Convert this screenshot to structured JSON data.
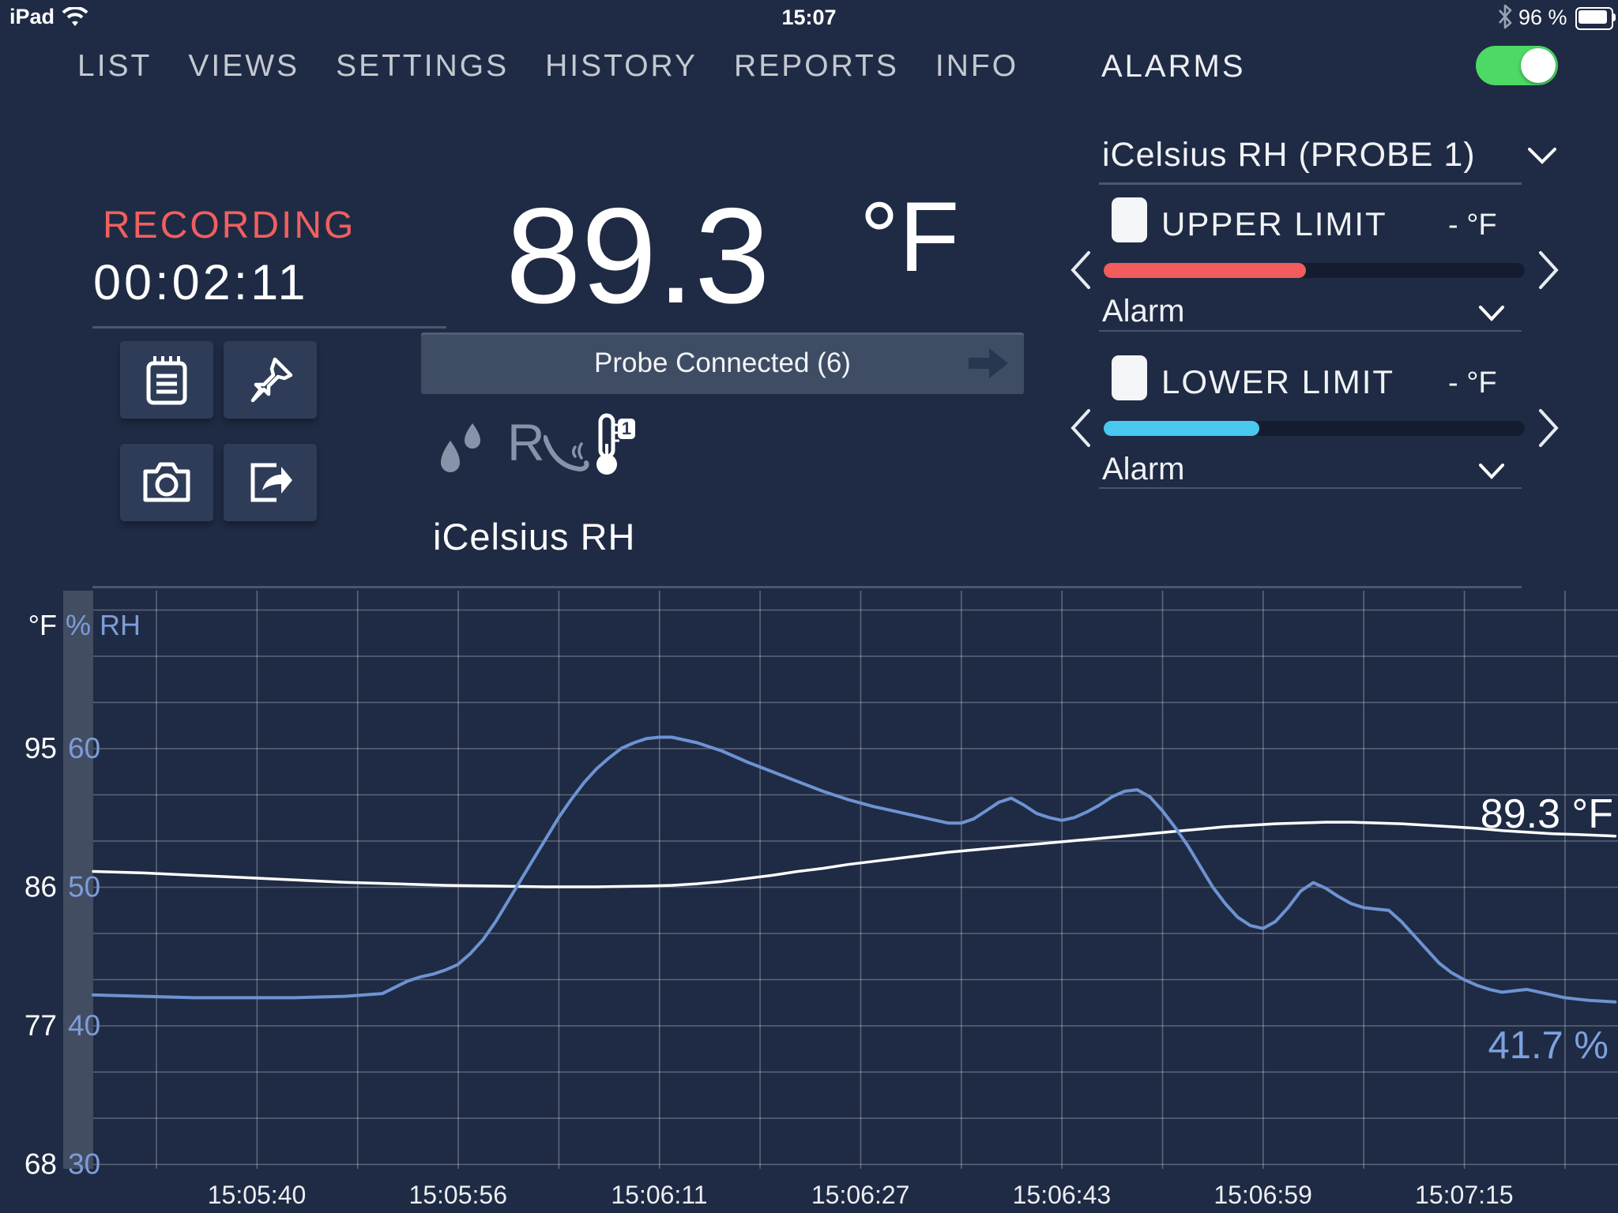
{
  "status_bar": {
    "device": "iPad",
    "time": "15:07",
    "battery_percent": "96 %"
  },
  "nav": {
    "items": [
      "LIST",
      "VIEWS",
      "SETTINGS",
      "HISTORY",
      "REPORTS",
      "INFO"
    ],
    "alarms_label": "ALARMS",
    "alarms_enabled": true,
    "toggle_color": "#4cd964"
  },
  "recording": {
    "status": "RECORDING",
    "elapsed": "00:02:11"
  },
  "reading": {
    "value": "89.3",
    "unit": "°F",
    "probe_status": "Probe Connected (6)",
    "device_name": "iCelsius RH"
  },
  "alarms_panel": {
    "probe_selector": "iCelsius RH (PROBE 1)",
    "upper": {
      "label": "UPPER LIMIT",
      "value": "- °F",
      "alarm_label": "Alarm",
      "fill_percent": 48,
      "color": "#f25c5c"
    },
    "lower": {
      "label": "LOWER LIMIT",
      "value": "- °F",
      "alarm_label": "Alarm",
      "fill_percent": 37,
      "color": "#49c8f0"
    }
  },
  "chart_data": {
    "type": "line",
    "grid": true,
    "axes": {
      "temperature": {
        "label": "°F",
        "ticks": [
          95,
          86,
          77,
          68
        ],
        "color": "#ffffff"
      },
      "humidity": {
        "label_symbol": "%",
        "label_text": "RH",
        "ticks": [
          60,
          50,
          40,
          30
        ],
        "color": "#7d9cd8"
      },
      "time": {
        "ticks": [
          {
            "t": 13,
            "label": "15:05:40"
          },
          {
            "t": 29,
            "label": "15:05:56"
          },
          {
            "t": 45,
            "label": "15:06:11"
          },
          {
            "t": 61,
            "label": "15:06:27"
          },
          {
            "t": 77,
            "label": "15:06:43"
          },
          {
            "t": 93,
            "label": "15:06:59"
          },
          {
            "t": 109,
            "label": "15:07:15"
          }
        ]
      }
    },
    "series": [
      {
        "name": "temperature",
        "axis": "temperature",
        "color": "#ffffff",
        "width": 3.5,
        "current_label": "89.3 °F",
        "points": [
          [
            0,
            87.0
          ],
          [
            4,
            86.9
          ],
          [
            8,
            86.75
          ],
          [
            12,
            86.6
          ],
          [
            16,
            86.45
          ],
          [
            20,
            86.3
          ],
          [
            24,
            86.2
          ],
          [
            28,
            86.1
          ],
          [
            32,
            86.05
          ],
          [
            36,
            86.0
          ],
          [
            40,
            86.0
          ],
          [
            44,
            86.05
          ],
          [
            46,
            86.1
          ],
          [
            48,
            86.2
          ],
          [
            50,
            86.35
          ],
          [
            52,
            86.55
          ],
          [
            54,
            86.75
          ],
          [
            56,
            87.0
          ],
          [
            58,
            87.2
          ],
          [
            60,
            87.45
          ],
          [
            62,
            87.65
          ],
          [
            64,
            87.85
          ],
          [
            66,
            88.05
          ],
          [
            68,
            88.25
          ],
          [
            70,
            88.4
          ],
          [
            72,
            88.55
          ],
          [
            74,
            88.7
          ],
          [
            76,
            88.85
          ],
          [
            78,
            89.0
          ],
          [
            80,
            89.15
          ],
          [
            82,
            89.3
          ],
          [
            84,
            89.45
          ],
          [
            86,
            89.6
          ],
          [
            88,
            89.75
          ],
          [
            90,
            89.9
          ],
          [
            92,
            90.0
          ],
          [
            94,
            90.1
          ],
          [
            96,
            90.15
          ],
          [
            98,
            90.2
          ],
          [
            100,
            90.2
          ],
          [
            102,
            90.15
          ],
          [
            104,
            90.1
          ],
          [
            106,
            90.0
          ],
          [
            108,
            89.9
          ],
          [
            110,
            89.8
          ],
          [
            112,
            89.65
          ],
          [
            114,
            89.55
          ],
          [
            116,
            89.45
          ],
          [
            118,
            89.4
          ],
          [
            121,
            89.3
          ]
        ]
      },
      {
        "name": "humidity",
        "axis": "humidity",
        "color": "#6d93d2",
        "width": 4,
        "current_label": "41.7 %",
        "points": [
          [
            0,
            42.2
          ],
          [
            4,
            42.1
          ],
          [
            8,
            42.0
          ],
          [
            12,
            42.0
          ],
          [
            16,
            42.0
          ],
          [
            20,
            42.1
          ],
          [
            23,
            42.3
          ],
          [
            25,
            43.2
          ],
          [
            26,
            43.5
          ],
          [
            27,
            43.7
          ],
          [
            28,
            44.0
          ],
          [
            29,
            44.4
          ],
          [
            30,
            45.2
          ],
          [
            31,
            46.2
          ],
          [
            32,
            47.5
          ],
          [
            33,
            49.0
          ],
          [
            34,
            50.5
          ],
          [
            35,
            52.0
          ],
          [
            36,
            53.5
          ],
          [
            37,
            55.0
          ],
          [
            38,
            56.3
          ],
          [
            39,
            57.5
          ],
          [
            40,
            58.5
          ],
          [
            41,
            59.3
          ],
          [
            42,
            60.0
          ],
          [
            43,
            60.4
          ],
          [
            44,
            60.7
          ],
          [
            45,
            60.8
          ],
          [
            46,
            60.8
          ],
          [
            47,
            60.6
          ],
          [
            48,
            60.4
          ],
          [
            50,
            59.8
          ],
          [
            52,
            59.0
          ],
          [
            54,
            58.3
          ],
          [
            56,
            57.6
          ],
          [
            58,
            56.9
          ],
          [
            60,
            56.3
          ],
          [
            62,
            55.8
          ],
          [
            64,
            55.4
          ],
          [
            66,
            55.0
          ],
          [
            67,
            54.8
          ],
          [
            68,
            54.6
          ],
          [
            69,
            54.6
          ],
          [
            70,
            54.9
          ],
          [
            71,
            55.5
          ],
          [
            72,
            56.1
          ],
          [
            73,
            56.4
          ],
          [
            74,
            55.9
          ],
          [
            75,
            55.3
          ],
          [
            76,
            55.0
          ],
          [
            77,
            54.8
          ],
          [
            78,
            55.0
          ],
          [
            79,
            55.4
          ],
          [
            80,
            55.9
          ],
          [
            81,
            56.5
          ],
          [
            82,
            56.9
          ],
          [
            83,
            57.0
          ],
          [
            84,
            56.5
          ],
          [
            85,
            55.5
          ],
          [
            86,
            54.3
          ],
          [
            87,
            53.0
          ],
          [
            88,
            51.5
          ],
          [
            89,
            50.0
          ],
          [
            90,
            48.8
          ],
          [
            91,
            47.8
          ],
          [
            92,
            47.2
          ],
          [
            93,
            47.0
          ],
          [
            94,
            47.5
          ],
          [
            95,
            48.5
          ],
          [
            96,
            49.7
          ],
          [
            97,
            50.3
          ],
          [
            98,
            49.9
          ],
          [
            99,
            49.3
          ],
          [
            100,
            48.8
          ],
          [
            101,
            48.5
          ],
          [
            102,
            48.4
          ],
          [
            103,
            48.3
          ],
          [
            104,
            47.5
          ],
          [
            105,
            46.5
          ],
          [
            106,
            45.5
          ],
          [
            107,
            44.5
          ],
          [
            108,
            43.8
          ],
          [
            109,
            43.3
          ],
          [
            110,
            42.9
          ],
          [
            111,
            42.6
          ],
          [
            112,
            42.4
          ],
          [
            113,
            42.5
          ],
          [
            114,
            42.6
          ],
          [
            115,
            42.4
          ],
          [
            116,
            42.2
          ],
          [
            117,
            42.0
          ],
          [
            118,
            41.9
          ],
          [
            119,
            41.8
          ],
          [
            121,
            41.7
          ]
        ]
      }
    ]
  }
}
